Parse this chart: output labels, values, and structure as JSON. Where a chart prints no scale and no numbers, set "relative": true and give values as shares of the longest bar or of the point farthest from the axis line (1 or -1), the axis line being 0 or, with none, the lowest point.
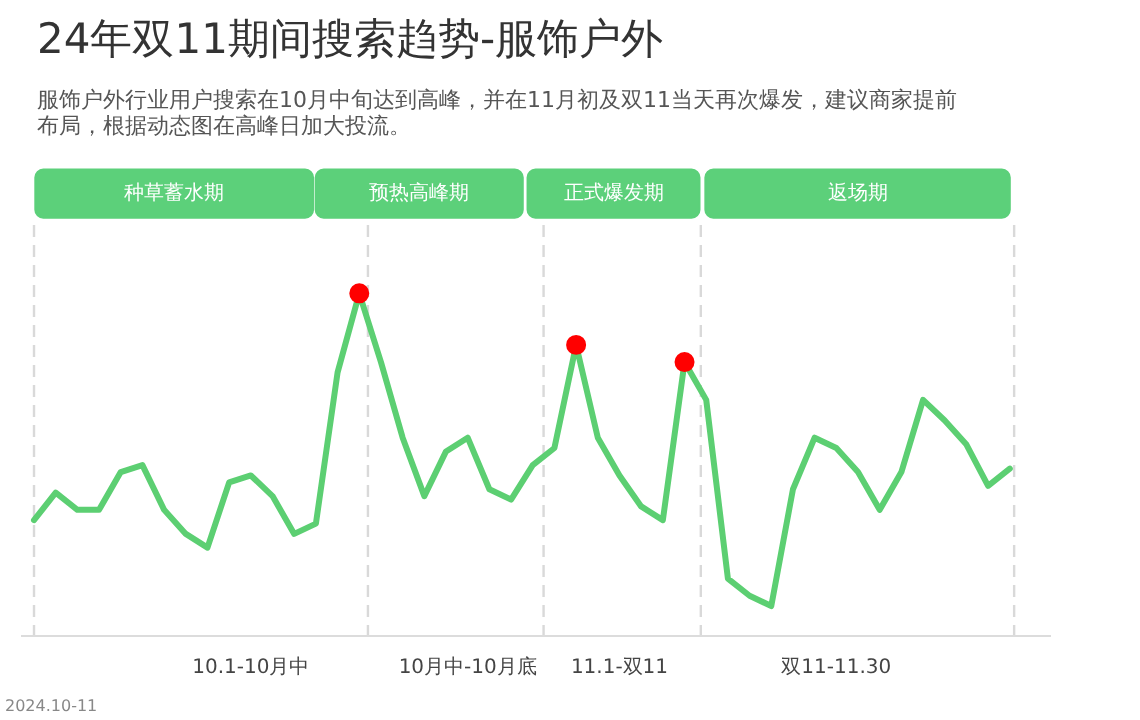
{
  "chart_data": {
    "type": "line",
    "relative": true,
    "title": "24年双11期间搜索趋势-服饰户外",
    "subtitle": "服饰户外行业用户搜索在10月中旬达到高峰，并在11月初及双11当天再次爆发，建议商家提前布局，根据动态图在高峰日加大投流。",
    "categories": [
      null,
      null,
      null,
      null,
      null,
      null,
      null,
      null,
      null,
      null,
      "10.1-10月中",
      null,
      null,
      null,
      null,
      null,
      null,
      null,
      null,
      null,
      "10月中-10月底",
      null,
      null,
      null,
      null,
      null,
      null,
      "11.1-双11",
      null,
      null,
      null,
      null,
      null,
      null,
      null,
      null,
      null,
      "双11-11.30",
      null,
      null,
      null,
      null,
      null,
      null,
      null,
      null
    ],
    "series": [
      {
        "color": "#5ccf72",
        "values": [
          0.34,
          0.42,
          0.37,
          0.37,
          0.48,
          0.5,
          0.37,
          0.3,
          0.26,
          0.45,
          0.47,
          0.41,
          0.3,
          0.33,
          0.77,
          1,
          0.8,
          0.58,
          0.41,
          0.54,
          0.58,
          0.43,
          0.4,
          0.5,
          0.55,
          0.85,
          0.58,
          0.47,
          0.38,
          0.34,
          0.8,
          0.69,
          0.17,
          0.12,
          0.09,
          0.43,
          0.58,
          0.55,
          0.48,
          0.37,
          0.48,
          0.69,
          0.63,
          0.56,
          0.44,
          0.49
        ]
      },
      {
        "type": "scatter",
        "color": "#ff0000",
        "marker": "circle",
        "values": [
          null,
          null,
          null,
          null,
          null,
          null,
          null,
          null,
          null,
          null,
          null,
          null,
          null,
          null,
          null,
          1,
          null,
          null,
          null,
          null,
          null,
          null,
          null,
          null,
          null,
          0.85,
          null,
          null,
          null,
          null,
          0.8,
          null,
          null,
          null,
          null,
          null,
          null,
          null,
          null,
          null,
          null,
          null,
          null,
          null,
          null,
          null
        ]
      }
    ],
    "annotations": [
      "种草蓄水期",
      "预热高峰期",
      "正式爆发期",
      "返场期",
      "2024.10-11"
    ]
  }
}
